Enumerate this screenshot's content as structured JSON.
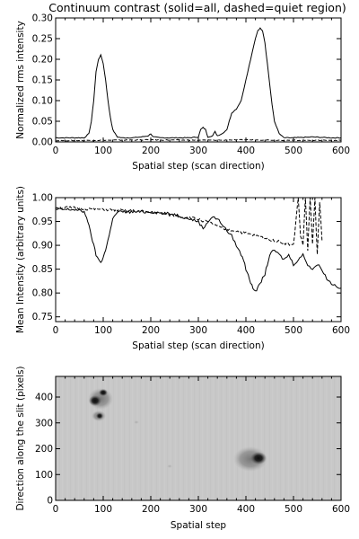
{
  "chart_data": [
    {
      "type": "line",
      "title": "Continuum contrast (solid=all, dashed=quiet region)",
      "xlabel": "Spatial step (scan direction)",
      "ylabel": "Normalized rms intensity",
      "xlim": [
        0,
        600
      ],
      "ylim": [
        0,
        0.3
      ],
      "xticks": [
        0,
        100,
        200,
        300,
        400,
        500,
        600
      ],
      "yticks": [
        0.0,
        0.05,
        0.1,
        0.15,
        0.2,
        0.25,
        0.3
      ],
      "ytick_labels": [
        "0.00",
        "0.05",
        "0.10",
        "0.15",
        "0.20",
        "0.25",
        "0.30"
      ],
      "series": [
        {
          "style": "solid",
          "x": [
            0,
            40,
            60,
            70,
            75,
            80,
            85,
            90,
            95,
            100,
            105,
            110,
            115,
            120,
            125,
            130,
            140,
            160,
            180,
            195,
            200,
            205,
            220,
            250,
            280,
            300,
            305,
            310,
            315,
            320,
            330,
            335,
            340,
            350,
            360,
            365,
            370,
            380,
            390,
            400,
            410,
            420,
            425,
            430,
            435,
            440,
            445,
            450,
            455,
            460,
            470,
            480,
            500,
            540,
            580,
            600
          ],
          "y": [
            0.01,
            0.01,
            0.01,
            0.02,
            0.05,
            0.1,
            0.17,
            0.2,
            0.21,
            0.19,
            0.15,
            0.1,
            0.06,
            0.03,
            0.02,
            0.012,
            0.01,
            0.01,
            0.012,
            0.015,
            0.02,
            0.012,
            0.01,
            0.01,
            0.01,
            0.012,
            0.03,
            0.035,
            0.03,
            0.012,
            0.015,
            0.025,
            0.015,
            0.02,
            0.03,
            0.05,
            0.07,
            0.08,
            0.1,
            0.15,
            0.2,
            0.25,
            0.27,
            0.275,
            0.27,
            0.24,
            0.19,
            0.14,
            0.09,
            0.05,
            0.02,
            0.01,
            0.01,
            0.012,
            0.01,
            0.01
          ]
        },
        {
          "style": "dashed",
          "x": [
            0,
            100,
            200,
            300,
            400,
            500,
            600
          ],
          "y": [
            0.003,
            0.004,
            0.005,
            0.004,
            0.005,
            0.004,
            0.004
          ]
        }
      ]
    },
    {
      "type": "line",
      "title": "",
      "xlabel": "Spatial step (scan direction)",
      "ylabel": "Mean Intensity (arbitrary units)",
      "xlim": [
        0,
        600
      ],
      "ylim": [
        0.74,
        1.0
      ],
      "xticks": [
        0,
        100,
        200,
        300,
        400,
        500,
        600
      ],
      "yticks": [
        0.75,
        0.8,
        0.85,
        0.9,
        0.95,
        1.0
      ],
      "ytick_labels": [
        "0.75",
        "0.80",
        "0.85",
        "0.90",
        "0.95",
        "1.00"
      ],
      "series": [
        {
          "style": "solid",
          "x": [
            0,
            20,
            40,
            60,
            65,
            70,
            75,
            80,
            85,
            90,
            95,
            100,
            105,
            110,
            115,
            120,
            130,
            150,
            180,
            200,
            250,
            300,
            310,
            320,
            330,
            340,
            350,
            360,
            370,
            380,
            390,
            395,
            400,
            405,
            410,
            415,
            420,
            425,
            430,
            435,
            440,
            445,
            450,
            460,
            470,
            480,
            490,
            500,
            510,
            520,
            530,
            540,
            550,
            560,
            570,
            580,
            590,
            600
          ],
          "y": [
            0.975,
            0.975,
            0.975,
            0.97,
            0.96,
            0.94,
            0.92,
            0.9,
            0.88,
            0.87,
            0.865,
            0.875,
            0.89,
            0.91,
            0.935,
            0.955,
            0.97,
            0.97,
            0.97,
            0.97,
            0.965,
            0.95,
            0.935,
            0.95,
            0.96,
            0.955,
            0.945,
            0.93,
            0.92,
            0.9,
            0.88,
            0.87,
            0.85,
            0.84,
            0.82,
            0.81,
            0.805,
            0.81,
            0.82,
            0.83,
            0.84,
            0.86,
            0.88,
            0.89,
            0.88,
            0.87,
            0.88,
            0.86,
            0.87,
            0.88,
            0.86,
            0.85,
            0.86,
            0.85,
            0.83,
            0.82,
            0.815,
            0.81
          ]
        },
        {
          "style": "dashed",
          "x": [
            0,
            100,
            200,
            300,
            330,
            350,
            380,
            400,
            420,
            440,
            460,
            480,
            500,
            505,
            510,
            515,
            520,
            525,
            530,
            535,
            540,
            545,
            550,
            555,
            560
          ],
          "y": [
            0.98,
            0.975,
            0.97,
            0.955,
            0.945,
            0.935,
            0.93,
            0.925,
            0.92,
            0.915,
            0.91,
            0.905,
            0.9,
            0.95,
            1.0,
            0.92,
            0.9,
            1.0,
            0.89,
            1.0,
            0.9,
            1.0,
            0.88,
            0.99,
            0.91
          ]
        }
      ]
    },
    {
      "type": "heatmap",
      "title": "",
      "xlabel": "Spatial step",
      "ylabel": "Direction along the slit (pixels)",
      "xlim": [
        0,
        600
      ],
      "ylim": [
        0,
        480
      ],
      "xticks": [
        0,
        100,
        200,
        300,
        400,
        500,
        600
      ],
      "yticks": [
        0,
        100,
        200,
        300,
        400
      ],
      "ytick_labels": [
        "0",
        "100",
        "200",
        "300",
        "400"
      ],
      "colormap": "grayscale",
      "features": [
        {
          "name": "upper-left sunspot group",
          "x": 95,
          "y": 360
        },
        {
          "name": "lower-right sunspot",
          "x": 430,
          "y": 165
        }
      ]
    }
  ]
}
